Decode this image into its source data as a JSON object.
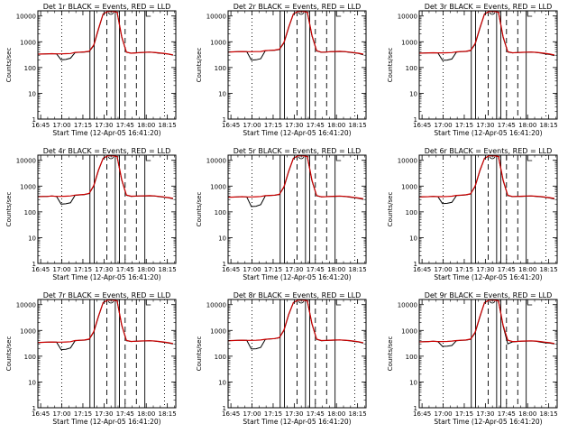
{
  "chart_data": [
    {
      "title": "Det 1r  BLACK = Events, RED = LLD",
      "xlabel": "Start Time (12-Apr-05 16:41:20)",
      "ylabel": "Counts/sec",
      "x_ticks": [
        "16:45",
        "17:00",
        "17:15",
        "17:30",
        "17:45",
        "18:00",
        "18:15"
      ],
      "y_ticks": [
        "1",
        "10",
        "100",
        "1000",
        "10000"
      ],
      "black": [
        330,
        335,
        340,
        345,
        340,
        200,
        205,
        230,
        380,
        390,
        400,
        420,
        700,
        3000,
        12000,
        15000,
        15000,
        14000,
        1500,
        390,
        360,
        370,
        380,
        390,
        395,
        380,
        360,
        350,
        330,
        300
      ],
      "red": [
        330,
        335,
        340,
        345,
        340,
        340,
        345,
        350,
        385,
        395,
        405,
        430,
        750,
        3200,
        12000,
        15000,
        15000,
        14000,
        1600,
        400,
        360,
        370,
        380,
        390,
        395,
        385,
        370,
        355,
        335,
        310
      ]
    },
    {
      "title": "Det 2r  BLACK = Events, RED = LLD",
      "xlabel": "Start Time (12-Apr-05 16:41:20)",
      "ylabel": "Counts/sec",
      "x_ticks": [
        "16:45",
        "17:00",
        "17:15",
        "17:30",
        "17:45",
        "18:00",
        "18:15"
      ],
      "y_ticks": [
        "1",
        "10",
        "100",
        "1000",
        "10000"
      ],
      "black": [
        400,
        405,
        410,
        420,
        410,
        195,
        200,
        220,
        450,
        460,
        470,
        500,
        900,
        3500,
        12000,
        15000,
        15000,
        14000,
        1700,
        440,
        390,
        400,
        410,
        415,
        420,
        410,
        390,
        370,
        350,
        310
      ],
      "red": [
        400,
        405,
        410,
        420,
        410,
        410,
        415,
        420,
        455,
        465,
        475,
        510,
        950,
        3700,
        12000,
        15000,
        15000,
        14000,
        1800,
        450,
        395,
        400,
        410,
        420,
        425,
        415,
        400,
        380,
        360,
        330
      ]
    },
    {
      "title": "Det 3r  BLACK = Events, RED = LLD",
      "xlabel": "Start Time (12-Apr-05 16:41:20)",
      "ylabel": "Counts/sec",
      "x_ticks": [
        "16:45",
        "17:00",
        "17:15",
        "17:30",
        "17:45",
        "18:00",
        "18:15"
      ],
      "y_ticks": [
        "1",
        "10",
        "100",
        "1000",
        "10000"
      ],
      "black": [
        360,
        365,
        370,
        375,
        370,
        190,
        195,
        215,
        400,
        410,
        420,
        450,
        800,
        3200,
        12000,
        15000,
        15000,
        14000,
        1500,
        400,
        370,
        380,
        385,
        390,
        395,
        385,
        365,
        340,
        320,
        290
      ],
      "red": [
        360,
        365,
        370,
        375,
        370,
        370,
        375,
        380,
        405,
        415,
        425,
        460,
        850,
        3400,
        12000,
        15000,
        15000,
        14000,
        1600,
        410,
        375,
        380,
        390,
        395,
        400,
        390,
        375,
        355,
        335,
        305
      ]
    },
    {
      "title": "Det 4r  BLACK = Events, RED = LLD",
      "xlabel": "Start Time (12-Apr-05 16:41:20)",
      "ylabel": "Counts/sec",
      "x_ticks": [
        "16:45",
        "17:00",
        "17:15",
        "17:30",
        "17:45",
        "18:00",
        "18:15"
      ],
      "y_ticks": [
        "1",
        "10",
        "100",
        "1000",
        "10000"
      ],
      "black": [
        390,
        395,
        400,
        410,
        400,
        200,
        205,
        225,
        440,
        455,
        470,
        510,
        1000,
        4000,
        12000,
        15000,
        15000,
        14000,
        1700,
        440,
        400,
        405,
        410,
        415,
        420,
        410,
        390,
        370,
        350,
        320
      ],
      "red": [
        390,
        395,
        400,
        410,
        400,
        400,
        405,
        415,
        445,
        460,
        475,
        520,
        1050,
        4200,
        12000,
        15000,
        15000,
        14000,
        1800,
        450,
        405,
        410,
        415,
        420,
        425,
        415,
        400,
        380,
        360,
        335
      ]
    },
    {
      "title": "Det 5r  BLACK = Events, RED = LLD",
      "xlabel": "Start Time (12-Apr-05 16:41:20)",
      "ylabel": "Counts/sec",
      "x_ticks": [
        "16:45",
        "17:00",
        "17:15",
        "17:30",
        "17:45",
        "18:00",
        "18:15"
      ],
      "y_ticks": [
        "1",
        "10",
        "100",
        "1000",
        "10000"
      ],
      "black": [
        370,
        375,
        380,
        390,
        380,
        160,
        165,
        190,
        420,
        430,
        440,
        470,
        900,
        3600,
        12000,
        15000,
        15000,
        14000,
        1600,
        420,
        380,
        390,
        395,
        400,
        405,
        395,
        375,
        355,
        335,
        305
      ],
      "red": [
        370,
        375,
        380,
        390,
        380,
        380,
        385,
        395,
        425,
        435,
        445,
        480,
        950,
        3800,
        12000,
        15000,
        15000,
        14000,
        1700,
        430,
        385,
        390,
        400,
        405,
        410,
        400,
        385,
        365,
        345,
        320
      ]
    },
    {
      "title": "Det 6r  BLACK = Events, RED = LLD",
      "xlabel": "Start Time (12-Apr-05 16:41:20)",
      "ylabel": "Counts/sec",
      "x_ticks": [
        "16:45",
        "17:00",
        "17:15",
        "17:30",
        "17:45",
        "18:00",
        "18:15"
      ],
      "y_ticks": [
        "1",
        "10",
        "100",
        "1000",
        "10000"
      ],
      "black": [
        380,
        385,
        390,
        400,
        390,
        210,
        215,
        235,
        430,
        440,
        455,
        490,
        950,
        3800,
        12000,
        15000,
        15000,
        14000,
        1650,
        430,
        390,
        395,
        400,
        405,
        410,
        400,
        385,
        365,
        345,
        315
      ],
      "red": [
        380,
        385,
        390,
        400,
        390,
        390,
        395,
        405,
        435,
        445,
        460,
        500,
        1000,
        4000,
        12000,
        15000,
        15000,
        14000,
        1750,
        440,
        395,
        400,
        405,
        410,
        415,
        405,
        395,
        375,
        355,
        330
      ]
    },
    {
      "title": "Det 7r  BLACK = Events, RED = LLD",
      "xlabel": "Start Time (12-Apr-05 16:41:20)",
      "ylabel": "Counts/sec",
      "x_ticks": [
        "16:45",
        "17:00",
        "17:15",
        "17:30",
        "17:45",
        "18:00",
        "18:15"
      ],
      "y_ticks": [
        "1",
        "10",
        "100",
        "1000",
        "10000"
      ],
      "black": [
        340,
        345,
        350,
        355,
        350,
        180,
        185,
        210,
        400,
        410,
        420,
        450,
        850,
        3400,
        12000,
        15000,
        15000,
        14000,
        1550,
        400,
        370,
        380,
        385,
        390,
        395,
        385,
        365,
        345,
        325,
        300
      ],
      "red": [
        340,
        345,
        350,
        355,
        350,
        350,
        355,
        365,
        405,
        415,
        425,
        460,
        900,
        3600,
        12000,
        15000,
        15000,
        14000,
        1650,
        410,
        375,
        380,
        390,
        395,
        400,
        390,
        375,
        355,
        335,
        310
      ]
    },
    {
      "title": "Det 8r  BLACK = Events, RED = LLD",
      "xlabel": "Start Time (12-Apr-05 16:41:20)",
      "ylabel": "Counts/sec",
      "x_ticks": [
        "16:45",
        "17:00",
        "17:15",
        "17:30",
        "17:45",
        "18:00",
        "18:15"
      ],
      "y_ticks": [
        "1",
        "10",
        "100",
        "1000",
        "10000"
      ],
      "black": [
        400,
        405,
        410,
        420,
        410,
        190,
        195,
        220,
        450,
        465,
        480,
        520,
        1000,
        4000,
        12000,
        15000,
        15000,
        14000,
        1750,
        450,
        400,
        405,
        415,
        420,
        425,
        415,
        395,
        375,
        355,
        320
      ],
      "red": [
        400,
        405,
        410,
        420,
        410,
        410,
        415,
        425,
        455,
        470,
        485,
        530,
        1050,
        4200,
        12000,
        15000,
        15000,
        14000,
        1850,
        460,
        405,
        410,
        420,
        425,
        430,
        420,
        405,
        385,
        365,
        335
      ]
    },
    {
      "title": "Det 9r  BLACK = Events, RED = LLD",
      "xlabel": "Start Time (12-Apr-05 16:41:20)",
      "ylabel": "Counts/sec",
      "x_ticks": [
        "16:45",
        "17:00",
        "17:15",
        "17:30",
        "17:45",
        "18:00",
        "18:15"
      ],
      "y_ticks": [
        "1",
        "10",
        "100",
        "1000",
        "10000"
      ],
      "black": [
        360,
        365,
        370,
        380,
        370,
        240,
        245,
        260,
        400,
        410,
        420,
        450,
        800,
        3200,
        12000,
        15000,
        15000,
        14000,
        1500,
        300,
        360,
        370,
        380,
        385,
        390,
        380,
        350,
        330,
        320,
        300
      ],
      "red": [
        360,
        365,
        370,
        380,
        370,
        370,
        375,
        385,
        405,
        415,
        425,
        460,
        850,
        3400,
        12000,
        15000,
        15000,
        14000,
        1600,
        420,
        370,
        375,
        385,
        390,
        395,
        385,
        370,
        350,
        335,
        310
      ]
    }
  ],
  "colors": {
    "events": "#000000",
    "lld": "#cc0000"
  }
}
